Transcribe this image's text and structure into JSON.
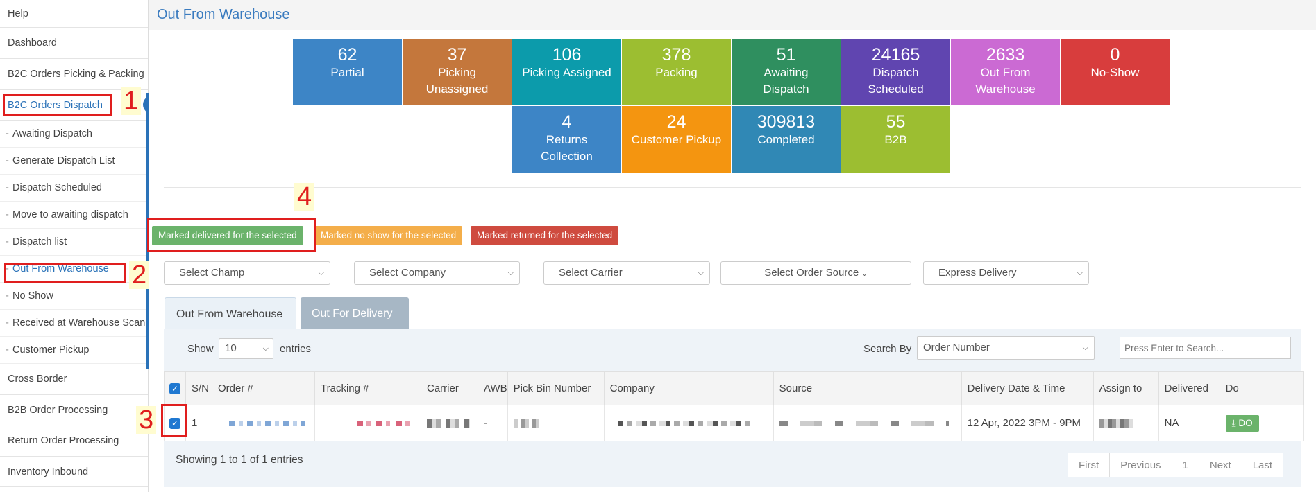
{
  "sidebar": {
    "top_items": [
      {
        "label": "Help"
      },
      {
        "label": "Dashboard"
      },
      {
        "label": "B2C Orders Picking & Packing"
      },
      {
        "label": "B2C Orders Dispatch"
      }
    ],
    "sub_items": [
      {
        "label": "Awaiting Dispatch"
      },
      {
        "label": "Generate Dispatch List"
      },
      {
        "label": "Dispatch Scheduled"
      },
      {
        "label": "Move to awaiting dispatch"
      },
      {
        "label": "Dispatch list"
      },
      {
        "label": "Out From Warehouse"
      },
      {
        "label": "No Show"
      },
      {
        "label": "Received at Warehouse Scan"
      },
      {
        "label": "Customer Pickup"
      }
    ],
    "bottom_items": [
      {
        "label": "Cross Border"
      },
      {
        "label": "B2B Order Processing"
      },
      {
        "label": "Return Order Processing"
      },
      {
        "label": "Inventory Inbound"
      }
    ]
  },
  "page_title": "Out From Warehouse",
  "tiles_row1": [
    {
      "count": "62",
      "label1": "Partial",
      "label2": "",
      "color": "#3d85c6"
    },
    {
      "count": "37",
      "label1": "Picking",
      "label2": "Unassigned",
      "color": "#c4773c"
    },
    {
      "count": "106",
      "label1": "Picking Assigned",
      "label2": "",
      "color": "#0c9bab"
    },
    {
      "count": "378",
      "label1": "Packing",
      "label2": "",
      "color": "#9cbe31"
    },
    {
      "count": "51",
      "label1": "Awaiting",
      "label2": "Dispatch",
      "color": "#2f8f5f"
    },
    {
      "count": "24165",
      "label1": "Dispatch",
      "label2": "Scheduled",
      "color": "#6045b0"
    },
    {
      "count": "2633",
      "label1": "Out From",
      "label2": "Warehouse",
      "color": "#cb6ad3"
    },
    {
      "count": "0",
      "label1": "No-Show",
      "label2": "",
      "color": "#d83d3d"
    }
  ],
  "tiles_row2": [
    {
      "count": "4",
      "label1": "Returns",
      "label2": "Collection",
      "color": "#3d85c6"
    },
    {
      "count": "24",
      "label1": "Customer Pickup",
      "label2": "",
      "color": "#f49510"
    },
    {
      "count": "309813",
      "label1": "Completed",
      "label2": "",
      "color": "#3088b5"
    },
    {
      "count": "55",
      "label1": "B2B",
      "label2": "",
      "color": "#9cbe31"
    }
  ],
  "actions": {
    "delivered": "Marked delivered for the selected",
    "noshow": "Marked no show for the selected",
    "returned": "Marked returned for the selected"
  },
  "filters": {
    "champ": "Select Champ",
    "company": "Select Company",
    "carrier": "Select Carrier",
    "order_source": "Select Order Source",
    "express": "Express Delivery"
  },
  "tabs": {
    "active": "Out From Warehouse",
    "inactive": "Out For Delivery"
  },
  "list_controls": {
    "show": "Show",
    "entries_value": "10",
    "entries": "entries",
    "search_by": "Search By",
    "search_by_value": "Order Number",
    "search_placeholder": "Press Enter to Search..."
  },
  "table": {
    "headers": [
      "S/N",
      "Order #",
      "Tracking #",
      "Carrier",
      "AWB",
      "Pick Bin Number",
      "Company",
      "Source",
      "Delivery Date & Time",
      "Assign to",
      "Delivered",
      "Do"
    ],
    "row": {
      "sn": "1",
      "awb": "-",
      "delivery": "12 Apr, 2022 3PM - 9PM",
      "delivered": "NA",
      "do": "DO"
    }
  },
  "info": "Showing 1 to 1 of 1 entries",
  "pager": [
    "First",
    "Previous",
    "1",
    "Next",
    "Last"
  ],
  "annotations": [
    "1",
    "2",
    "3",
    "4"
  ],
  "colors": {
    "delivered_btn": "#6bb36b",
    "noshow_btn": "#f4ae4a",
    "returned_btn": "#cf4b3f",
    "annotation": "#e01e1e"
  }
}
